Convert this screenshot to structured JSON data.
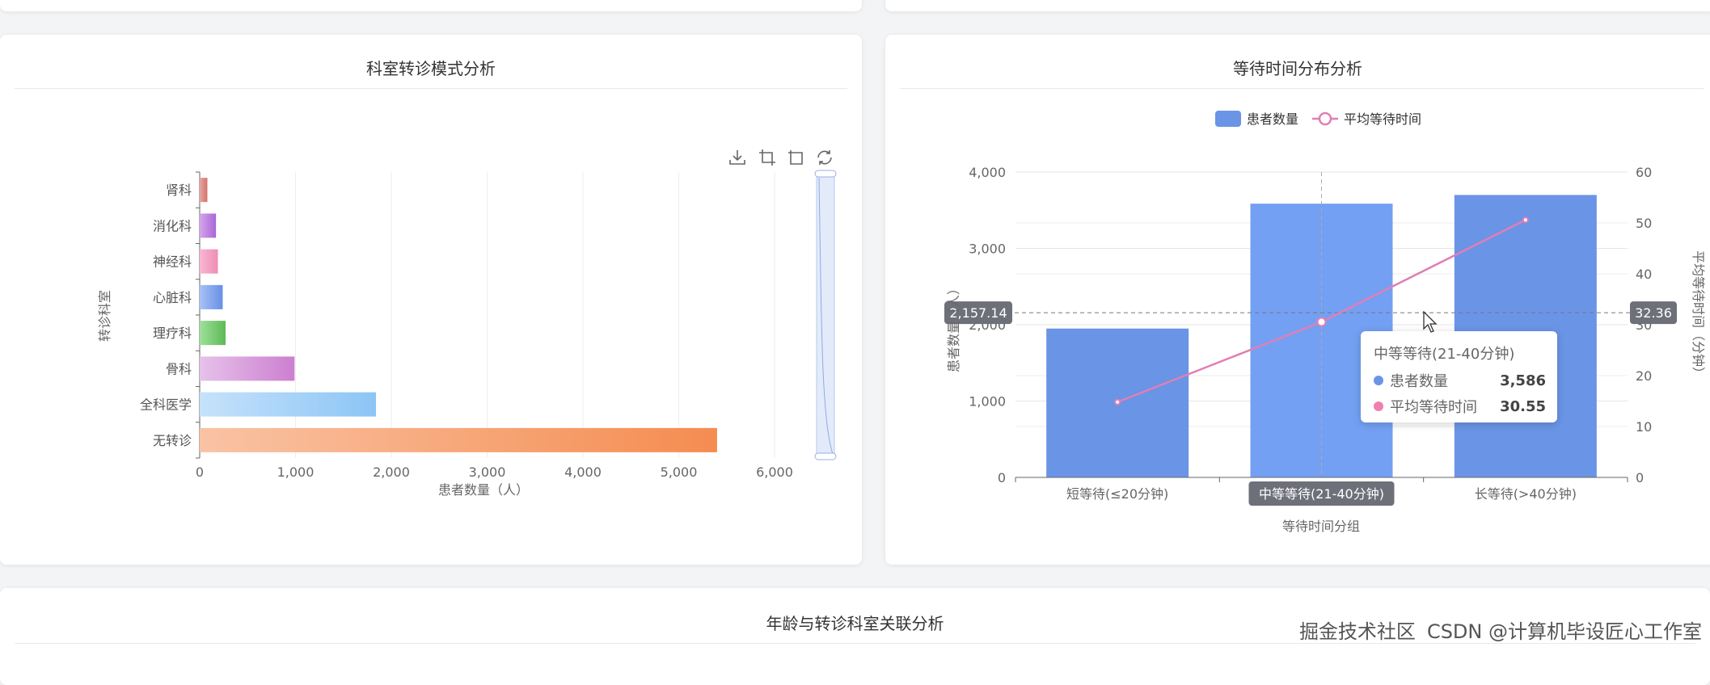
{
  "left_card": {
    "title": "科室转诊模式分析",
    "toolbox": [
      {
        "icon": "download-icon"
      },
      {
        "icon": "zoom-area-icon"
      },
      {
        "icon": "zoom-reset-icon"
      },
      {
        "icon": "refresh-icon"
      }
    ]
  },
  "right_card": {
    "title": "等待时间分布分析"
  },
  "bottom_card": {
    "title": "年龄与转诊科室关联分析"
  },
  "chart_data": [
    {
      "type": "bar",
      "orientation": "horizontal",
      "categories": [
        "无转诊",
        "全科医学",
        "骨科",
        "理疗科",
        "心脏科",
        "神经科",
        "消化科",
        "肾科"
      ],
      "values": [
        5400,
        1840,
        990,
        270,
        240,
        190,
        170,
        80
      ],
      "colors": [
        [
          "#f9c3a4",
          "#f58c50"
        ],
        [
          "#c6e2fb",
          "#8cc5f5"
        ],
        [
          "#e6c2ea",
          "#cc7fd0"
        ],
        [
          "#9ee09a",
          "#5cba55"
        ],
        [
          "#a9c1f5",
          "#6690e6"
        ],
        [
          "#f8b7d2",
          "#f08cb5"
        ],
        [
          "#d3a6ec",
          "#a966d6"
        ],
        [
          "#e8a6a0",
          "#d2746b"
        ]
      ],
      "xlabel": "患者数量（人）",
      "ylabel": "转诊科室",
      "xlim": [
        0,
        6000
      ],
      "xticks": [
        "0",
        "1,000",
        "2,000",
        "3,000",
        "4,000",
        "5,000",
        "6,000"
      ],
      "grid": true,
      "datazoom": "vertical-slider-right"
    },
    {
      "type": "bar+line",
      "categories": [
        "短等待(≤20分钟)",
        "中等等待(21-40分钟)",
        "长等待(>40分钟)"
      ],
      "series": [
        {
          "name": "患者数量",
          "type": "bar",
          "axis": "left",
          "values": [
            1950,
            3586,
            3700
          ],
          "color": "#6a94e6"
        },
        {
          "name": "平均等待时间",
          "type": "line",
          "axis": "right",
          "values": [
            14.8,
            30.55,
            50.6
          ],
          "color": "#e07fb5"
        }
      ],
      "xlabel": "等待时间分组",
      "ylabel_left": "患者数量（人）",
      "ylabel_right": "平均等待时间（分钟）",
      "ylim_left": [
        0,
        4000
      ],
      "ylim_right": [
        0,
        60
      ],
      "yticks_left": [
        "0",
        "1,000",
        "2,000",
        "3,000",
        "4,000"
      ],
      "yticks_right": [
        "0",
        "10",
        "20",
        "30",
        "40",
        "50",
        "60"
      ],
      "legend": "top-center",
      "grid": true,
      "axis_pointer": {
        "left_label": "2,157.14",
        "right_label": "32.36",
        "category": "中等等待(21-40分钟)"
      },
      "tooltip": {
        "title": "中等等待(21-40分钟)",
        "rows": [
          {
            "name": "患者数量",
            "value": "3,586",
            "color": "#6a94e6"
          },
          {
            "name": "平均等待时间",
            "value": "30.55",
            "color": "#f07fb0"
          }
        ]
      }
    }
  ],
  "watermark": {
    "left": "掘金技术社区",
    "right": "CSDN @计算机毕设匠心工作室"
  }
}
